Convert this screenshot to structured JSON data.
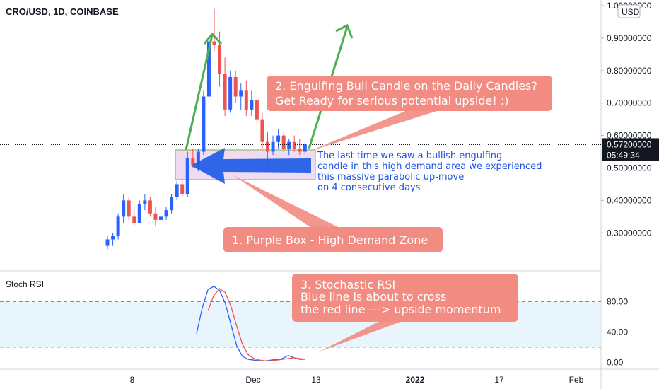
{
  "chart_data": [
    {
      "type": "candlestick",
      "title": "CRO/USD, 1D, COINBASE",
      "currency": "USD",
      "price_axis": {
        "range": [
          0.22,
          1.0
        ],
        "ticks": [
          "0.30000000",
          "0.40000000",
          "0.50000000",
          "0.60000000",
          "0.70000000",
          "0.80000000",
          "0.90000000",
          "1.00000000"
        ],
        "last_price_label": "0.57200000",
        "countdown": "05:49:34",
        "last_price": 0.572
      },
      "x_axis": {
        "ticks": [
          "8",
          "Dec",
          "13",
          "2022",
          "17",
          "Feb"
        ]
      },
      "candles": [
        [
          0.26,
          0.29,
          0.25,
          0.28
        ],
        [
          0.28,
          0.3,
          0.26,
          0.29
        ],
        [
          0.29,
          0.36,
          0.28,
          0.35
        ],
        [
          0.35,
          0.42,
          0.33,
          0.4
        ],
        [
          0.4,
          0.41,
          0.34,
          0.35
        ],
        [
          0.35,
          0.38,
          0.32,
          0.33
        ],
        [
          0.33,
          0.4,
          0.33,
          0.39
        ],
        [
          0.39,
          0.42,
          0.37,
          0.4
        ],
        [
          0.4,
          0.41,
          0.35,
          0.36
        ],
        [
          0.36,
          0.38,
          0.32,
          0.34
        ],
        [
          0.34,
          0.36,
          0.32,
          0.35
        ],
        [
          0.35,
          0.38,
          0.34,
          0.37
        ],
        [
          0.37,
          0.42,
          0.36,
          0.41
        ],
        [
          0.41,
          0.46,
          0.4,
          0.45
        ],
        [
          0.45,
          0.47,
          0.41,
          0.42
        ],
        [
          0.42,
          0.55,
          0.41,
          0.53
        ],
        [
          0.53,
          0.56,
          0.5,
          0.51
        ],
        [
          0.51,
          0.56,
          0.49,
          0.55
        ],
        [
          0.55,
          0.74,
          0.54,
          0.72
        ],
        [
          0.72,
          0.9,
          0.7,
          0.89
        ],
        [
          0.89,
          0.99,
          0.86,
          0.88
        ],
        [
          0.88,
          0.92,
          0.75,
          0.79
        ],
        [
          0.79,
          0.84,
          0.66,
          0.68
        ],
        [
          0.68,
          0.8,
          0.67,
          0.78
        ],
        [
          0.78,
          0.8,
          0.7,
          0.72
        ],
        [
          0.72,
          0.76,
          0.68,
          0.74
        ],
        [
          0.74,
          0.77,
          0.66,
          0.68
        ],
        [
          0.68,
          0.74,
          0.66,
          0.71
        ],
        [
          0.71,
          0.72,
          0.63,
          0.65
        ],
        [
          0.65,
          0.67,
          0.56,
          0.58
        ],
        [
          0.58,
          0.61,
          0.5,
          0.55
        ],
        [
          0.55,
          0.6,
          0.54,
          0.58
        ],
        [
          0.58,
          0.62,
          0.56,
          0.6
        ],
        [
          0.6,
          0.61,
          0.55,
          0.56
        ],
        [
          0.56,
          0.59,
          0.54,
          0.58
        ],
        [
          0.58,
          0.6,
          0.55,
          0.56
        ],
        [
          0.56,
          0.59,
          0.54,
          0.55
        ],
        [
          0.55,
          0.58,
          0.54,
          0.572
        ]
      ],
      "colors": {
        "up": "#2962ff",
        "down": "#ef5350",
        "bg": "#ffffff"
      }
    },
    {
      "type": "line",
      "title": "Stoch RSI",
      "y_axis": {
        "ticks": [
          "0.00",
          "40.00",
          "80.00"
        ],
        "range": [
          -8,
          112
        ],
        "band": [
          20,
          80
        ]
      },
      "series": [
        {
          "color": "#2962ff",
          "values": [
            38,
            72,
            96,
            100,
            95,
            78,
            50,
            22,
            8,
            4,
            3,
            2,
            2,
            3,
            4,
            5,
            9,
            6,
            4,
            4
          ]
        },
        {
          "color": "#ef5350",
          "values": [
            null,
            null,
            68,
            88,
            97,
            92,
            74,
            48,
            24,
            10,
            5,
            3,
            2,
            2,
            3,
            4,
            5,
            6,
            5,
            4
          ]
        }
      ]
    }
  ],
  "annotations": {
    "box1": "1. Purple Box - High Demand Zone",
    "box2_line1": "2. Engulfing Bull Candle on the Daily Candles?",
    "box2_line2": "Get Ready for serious potential upside! :)",
    "box3_line1": "3. Stochastic RSI",
    "box3_line2": "Blue line is about to cross",
    "box3_line3": "the red line ---> upside momentum",
    "note_line1": "The last time we saw a bullish engulfing",
    "note_line2": "candle in this high demand area we experienced",
    "note_line3": "this massive parabolic up-move",
    "note_line4": "on 4 consecutive days"
  }
}
